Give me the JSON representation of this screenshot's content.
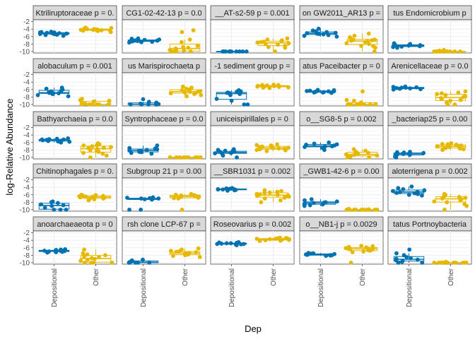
{
  "chart_data": {
    "type": "scatter",
    "title": "",
    "xlabel": "Dep",
    "ylabel": "log-Relative Abundance",
    "categories": [
      "Depositional",
      "Other"
    ],
    "ylim": [
      -10.4,
      -1.5
    ],
    "yticks": [
      -2,
      -4,
      -6,
      -8,
      -10
    ],
    "ytick_labels": [
      "-2",
      "-4",
      "-6",
      "-8",
      "-10"
    ],
    "grid": true,
    "legend": "none",
    "colors": {
      "Depositional": "#0072B2",
      "Other": "#E6B800"
    },
    "panels": [
      {
        "label": "Ktriliruptoraceae p = 0.",
        "dep": [
          -5.0,
          -5.4,
          -4.8,
          -5.6,
          -5.1,
          -4.9,
          -5.3,
          -5.2,
          -5.5,
          -4.7,
          -5.0,
          -5.8,
          -5.1,
          -4.9,
          -5.3
        ],
        "other": [
          -4.0,
          -4.3,
          -3.8,
          -4.5,
          -4.1,
          -3.9,
          -4.2,
          -4.6,
          -3.7,
          -4.4,
          -4.0,
          -4.8,
          -3.6,
          -4.2,
          -4.1,
          -4.3
        ]
      },
      {
        "label": "CG1-02-42-13 p = 0.0",
        "dep": [
          -7.0,
          -7.3,
          -6.8,
          -7.5,
          -7.1,
          -6.9,
          -7.2,
          -6.6,
          -7.4,
          -7.0,
          -6.5,
          -7.6,
          -7.1
        ],
        "other": [
          -9.5,
          -8.5,
          -9.8,
          -10.0,
          -9.0,
          -7.5,
          -4.3,
          -6.8,
          -10.0,
          -9.2,
          -8.8,
          -10.0,
          -9.6,
          -4.8,
          -10.0
        ]
      },
      {
        "label": "__AT-s2-59 p = 0.001",
        "dep": [
          -10.0,
          -10.0,
          -10.0,
          -10.0,
          -10.0,
          -10.0,
          -10.0,
          -10.0,
          -10.0,
          -10.0,
          -10.0,
          -10.0
        ],
        "other": [
          -7.5,
          -8.0,
          -7.0,
          -8.5,
          -7.8,
          -6.5,
          -9.0,
          -7.2,
          -8.2,
          -10.0,
          -7.6,
          -6.8,
          -8.8,
          -7.4
        ]
      },
      {
        "label": "on GW2011_AR13 p =",
        "dep": [
          -5.2,
          -4.8,
          -5.6,
          -4.4,
          -5.0,
          -5.8,
          -4.6,
          -5.4,
          -3.9,
          -5.1,
          -6.0,
          -5.3
        ],
        "other": [
          -6.8,
          -7.5,
          -8.5,
          -6.2,
          -7.0,
          -9.0,
          -5.8,
          -7.8,
          -6.5,
          -8.0,
          -5.2,
          -7.3,
          -10.0,
          -6.9,
          -8.6,
          -7.1
        ]
      },
      {
        "label": "tus Endomicrobium p",
        "dep": [
          -8.5,
          -8.2,
          -8.8,
          -8.0,
          -8.6,
          -8.3,
          -9.0,
          -8.4,
          -7.8,
          -8.7
        ],
        "other": [
          -10.0,
          -10.0,
          -10.0,
          -10.0,
          -9.6,
          -10.0,
          -10.0,
          -9.8,
          -10.0,
          -10.0,
          -10.0,
          -10.0,
          -10.0
        ]
      },
      {
        "label": "alobaculum p = 0.001",
        "dep": [
          -7.0,
          -6.5,
          -7.5,
          -6.0,
          -7.2,
          -5.5,
          -6.8,
          -7.8,
          -6.3,
          -7.0,
          -5.8,
          -6.9
        ],
        "other": [
          -9.5,
          -10.0,
          -8.5,
          -10.0,
          -9.8,
          -10.0,
          -8.8,
          -10.0,
          -9.2,
          -10.0,
          -10.0,
          -9.0,
          -10.0
        ]
      },
      {
        "label": "us Marispirochaeta p",
        "dep": [
          -9.8,
          -10.0,
          -9.5,
          -10.0,
          -8.6,
          -10.0,
          -9.3,
          -10.0,
          -9.9,
          -10.0
        ],
        "other": [
          -6.2,
          -6.8,
          -5.5,
          -7.2,
          -6.5,
          -5.8,
          -7.5,
          -6.0,
          -6.9,
          -5.2,
          -7.0,
          -6.4,
          -7.8,
          -6.6
        ]
      },
      {
        "label": "-1 sediment group p =",
        "dep": [
          -6.8,
          -7.2,
          -6.5,
          -9.0,
          -7.0,
          -10.0,
          -6.2,
          -8.5,
          -6.9,
          -7.5,
          -10.0,
          -6.6
        ],
        "other": [
          -5.0,
          -5.3,
          -4.8,
          -5.5,
          -5.1,
          -4.9,
          -5.2,
          -5.4,
          -4.7,
          -5.0,
          -5.6,
          -5.1,
          -4.8,
          -5.2
        ]
      },
      {
        "label": "atus Paceibacter p = 0",
        "dep": [
          -6.5,
          -6.8,
          -6.2,
          -6.7,
          -6.4,
          -6.9,
          -6.3,
          -6.6,
          -6.1,
          -6.5,
          -6.8,
          -6.4
        ],
        "other": [
          -10.0,
          -10.0,
          -9.0,
          -10.0,
          -6.5,
          -10.0,
          -8.8,
          -10.0,
          -10.0,
          -9.5,
          -10.0,
          -10.0,
          -10.0
        ]
      },
      {
        "label": "Arenicellaceae p = 0.0",
        "dep": [
          -5.5,
          -5.8,
          -5.2,
          -6.0,
          -5.6,
          -5.4,
          -5.9,
          -5.3,
          -5.7,
          -5.5
        ],
        "other": [
          -7.5,
          -8.5,
          -6.8,
          -9.0,
          -7.0,
          -10.0,
          -8.0,
          -6.5,
          -9.5,
          -7.8,
          -8.8,
          -10.0,
          -7.2,
          -8.3
        ]
      },
      {
        "label": "Bathyarchaeia p = 0.0",
        "dep": [
          -5.2,
          -5.5,
          -5.0,
          -5.8,
          -5.3,
          -5.1,
          -5.6,
          -5.4,
          -4.9,
          -5.7,
          -5.2,
          -6.0
        ],
        "other": [
          -7.5,
          -8.5,
          -6.8,
          -9.0,
          -7.2,
          -6.5,
          -8.0,
          -10.0,
          -7.8,
          -6.2,
          -8.8,
          -7.0,
          -9.5,
          -7.4,
          -8.2,
          -6.8
        ]
      },
      {
        "label": "Syntrophaceae p = 0.0",
        "dep": [
          -8.0,
          -8.5,
          -7.5,
          -8.8,
          -8.2,
          -7.8,
          -9.0,
          -6.8,
          -8.3,
          -7.6,
          -8.6,
          -8.1
        ],
        "other": [
          -10.0,
          -10.0,
          -10.0,
          -10.0,
          -10.0,
          -10.0,
          -10.0,
          -10.0,
          -10.0,
          -10.0,
          -10.0,
          -10.0,
          -10.0
        ]
      },
      {
        "label": "uniceispirillales p = 0",
        "dep": [
          -8.5,
          -8.8,
          -8.2,
          -9.5,
          -8.6,
          -7.8,
          -9.0,
          -8.4,
          -10.0,
          -8.7,
          -8.0,
          -8.9
        ],
        "other": [
          -7.5,
          -7.0,
          -8.0,
          -6.5,
          -7.8,
          -7.2,
          -8.3,
          -6.8,
          -7.6,
          -7.4,
          -8.1,
          -7.1,
          -6.7,
          -7.7
        ]
      },
      {
        "label": "o__SG8-5 p = 0.002",
        "dep": [
          -6.5,
          -7.0,
          -6.0,
          -7.5,
          -6.8,
          -7.2,
          -6.3,
          -8.0,
          -6.6,
          -7.1
        ],
        "other": [
          -9.0,
          -8.5,
          -9.5,
          -8.2,
          -9.8,
          -8.8,
          -10.0,
          -9.2,
          -7.8,
          -9.6,
          -8.6,
          -10.0,
          -9.3
        ]
      },
      {
        "label": "_bacteriap25 p = 0.00",
        "dep": [
          -9.0,
          -8.5,
          -9.3,
          -8.8,
          -9.5,
          -8.7,
          -9.8,
          -8.6,
          -9.2,
          -8.9,
          -10.0,
          -9.1
        ],
        "other": [
          -7.0,
          -6.5,
          -7.5,
          -6.8,
          -7.2,
          -6.2,
          -7.8,
          -6.6,
          -7.4,
          -6.9,
          -7.1,
          -6.4,
          -7.6,
          -8.0
        ]
      },
      {
        "label": "Chitinophagales p = 0.",
        "dep": [
          -8.2,
          -9.0,
          -7.8,
          -10.0,
          -8.6,
          -10.0,
          -8.0,
          -9.5,
          -8.8,
          -10.0
        ],
        "other": [
          -6.5,
          -7.0,
          -6.2,
          -7.2,
          -6.8,
          -6.0,
          -6.6,
          -7.5,
          -6.4,
          -6.9,
          -6.3,
          -7.1,
          -6.7,
          -6.1
        ]
      },
      {
        "label": "Subgroup 21 p = 0.00",
        "dep": [
          -7.0,
          -7.2,
          -6.8,
          -7.1,
          -10.0,
          -6.9,
          -7.3,
          -10.0,
          -7.0,
          -6.7
        ],
        "other": [
          -6.5,
          -6.0,
          -7.0,
          -6.2,
          -6.8,
          -5.8,
          -6.4,
          -10.0,
          -6.6,
          -6.1,
          -6.9,
          -6.3
        ]
      },
      {
        "label": "__SBR1031 p = 0.002",
        "dep": [
          -4.5,
          -4.8,
          -4.3,
          -4.7,
          -4.6,
          -4.4,
          -4.9,
          -4.5,
          -4.2,
          -4.6
        ],
        "other": [
          -5.8,
          -6.5,
          -5.2,
          -7.0,
          -5.5,
          -6.2,
          -4.8,
          -7.5,
          -6.0,
          -5.4,
          -6.8,
          -5.9,
          -8.0,
          -6.3,
          -5.0,
          -6.6
        ]
      },
      {
        "label": "_GWB1-42-6 p = 0.00",
        "dep": [
          -8.0,
          -8.5,
          -7.5,
          -8.8,
          -8.2,
          -7.8,
          -9.0,
          -8.3,
          -7.2,
          -8.6,
          -8.1
        ],
        "other": [
          -10.0,
          -10.0,
          -10.0,
          -9.8,
          -10.0,
          -10.0,
          -10.0,
          -10.0,
          -9.9,
          -10.0,
          -10.0,
          -10.0,
          -10.0,
          -10.0
        ]
      },
      {
        "label": "aloterrigena p = 0.002",
        "dep": [
          -5.0,
          -5.5,
          -4.5,
          -6.0,
          -5.2,
          -3.8,
          -5.8,
          -4.8,
          -6.2,
          -5.3,
          -4.2,
          -5.6
        ],
        "other": [
          -6.5,
          -7.5,
          -6.0,
          -8.0,
          -7.0,
          -5.8,
          -8.5,
          -6.8,
          -7.8,
          -10.0,
          -6.2,
          -7.2,
          -9.0,
          -6.6
        ]
      },
      {
        "label": "anoarchaeaeota p = 0",
        "dep": [
          -6.8,
          -7.0,
          -6.5,
          -7.2,
          -6.9,
          -6.6,
          -7.3,
          -6.7,
          -7.0,
          -6.4,
          -7.1,
          -6.8
        ],
        "other": [
          -8.5,
          -9.5,
          -8.0,
          -10.0,
          -7.5,
          -9.0,
          -10.0,
          -8.8,
          -6.5,
          -10.0,
          -9.2,
          -7.8,
          -10.0,
          -8.3
        ]
      },
      {
        "label": "rsh clone LCP-67 p =",
        "dep": [
          -9.5,
          -10.0,
          -9.2,
          -10.0,
          -9.8,
          -10.0,
          -9.6,
          -10.0,
          -9.4,
          -10.0
        ],
        "other": [
          -7.5,
          -7.0,
          -8.0,
          -6.8,
          -7.8,
          -7.2,
          -8.5,
          -6.5,
          -7.6,
          -7.4,
          -8.2,
          -6.2,
          -7.9,
          -7.1
        ]
      },
      {
        "label": "Roseovarius p = 0.002",
        "dep": [
          -4.8,
          -5.0,
          -4.6,
          -5.2,
          -4.7,
          -4.9,
          -5.1,
          -4.5,
          -5.0,
          -4.8,
          -5.3
        ],
        "other": [
          -3.6,
          -3.9,
          -3.4,
          -4.1,
          -3.7,
          -3.5,
          -4.0,
          -3.3,
          -3.8,
          -3.6,
          -4.2,
          -3.5,
          -3.9,
          -3.7,
          -4.0
        ]
      },
      {
        "label": "o__NB1-j p = 0.0029",
        "dep": [
          -7.8,
          -8.0,
          -7.5,
          -8.2,
          -7.7,
          -7.9,
          -7.6,
          -8.1,
          -7.4,
          -7.8,
          -8.0
        ],
        "other": [
          -6.0,
          -6.5,
          -5.5,
          -7.0,
          -6.2,
          -5.8,
          -6.8,
          -10.0,
          -6.4,
          -5.6,
          -6.6,
          -6.1,
          -7.2,
          -5.9
        ]
      },
      {
        "label": "tatus Portnoybacteria",
        "dep": [
          -9.0,
          -9.5,
          -8.5,
          -10.0,
          -8.8,
          -6.5,
          -9.2,
          -8.0,
          -9.8,
          -7.5,
          -9.4,
          -10.0
        ],
        "other": [
          -10.0,
          -10.0,
          -10.0,
          -10.0,
          -10.0,
          -10.0,
          -9.8,
          -10.0,
          -10.0,
          -10.0,
          -10.0,
          -10.0,
          -10.0
        ]
      }
    ]
  }
}
